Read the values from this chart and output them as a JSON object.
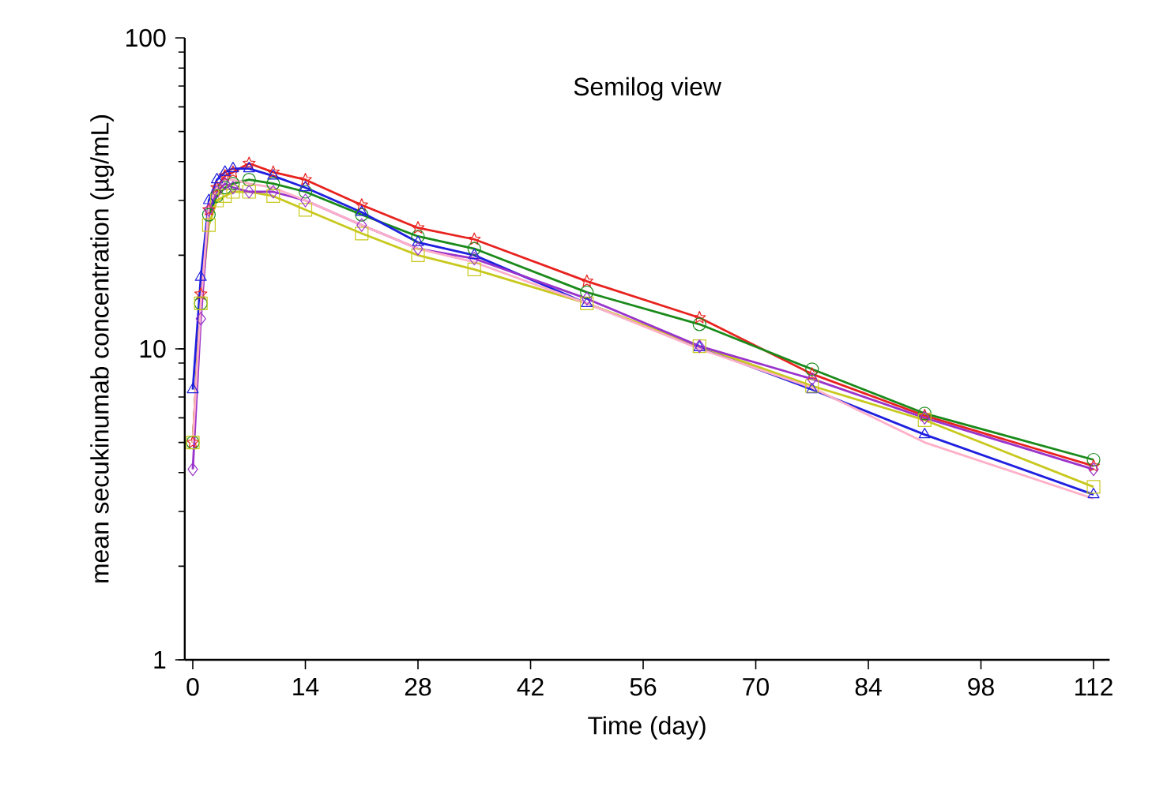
{
  "chart_data": {
    "type": "line",
    "title": "Semilog view",
    "xlabel": "Time (day)",
    "ylabel": "mean secukinumab concentration (µg/mL)",
    "x": [
      0,
      1,
      2,
      3,
      4,
      5,
      7,
      10,
      14,
      21,
      28,
      35,
      49,
      63,
      77,
      91,
      112
    ],
    "series": [
      {
        "color": "#e8231f",
        "marker": "star",
        "values": [
          5.0,
          15,
          28,
          33,
          36,
          37,
          39.5,
          37,
          35,
          29,
          24.5,
          22.5,
          16.5,
          12.6,
          8.3,
          6.1,
          4.2
        ]
      },
      {
        "color": "#1a8a1a",
        "marker": "circle",
        "values": [
          5.0,
          14,
          27,
          31,
          33,
          34,
          35,
          34,
          32,
          27,
          23,
          21,
          15.2,
          12,
          8.6,
          6.2,
          4.4
        ]
      },
      {
        "color": "#1f1fe0",
        "marker": "triangle",
        "values": [
          7.4,
          17,
          30,
          35,
          37,
          38,
          38,
          36,
          33,
          27.5,
          22,
          20,
          14,
          10.1,
          7.4,
          5.3,
          3.4
        ]
      },
      {
        "color": "#c8c81e",
        "marker": "square",
        "values": [
          5.0,
          14,
          25,
          30,
          31,
          32,
          32,
          31,
          28,
          23.5,
          20,
          18,
          14,
          10.2,
          7.6,
          5.9,
          3.6
        ]
      },
      {
        "color": "#9933cc",
        "marker": "diamond",
        "values": [
          4.1,
          12.5,
          28,
          32,
          34,
          33,
          32,
          32,
          30,
          25,
          21,
          19.5,
          14.5,
          10.2,
          8,
          6.0,
          4.1
        ]
      },
      {
        "color": "#ffb0c8",
        "marker": "none",
        "values": [
          5.0,
          14,
          29,
          33,
          35,
          35,
          34,
          33,
          30,
          25,
          21,
          19,
          14,
          10,
          7.5,
          5.0,
          3.3
        ]
      }
    ],
    "xlim": [
      -1,
      114
    ],
    "ylim": [
      1,
      100
    ],
    "xticks": [
      0,
      14,
      28,
      42,
      56,
      70,
      84,
      98,
      112
    ],
    "yticks": [
      1,
      10,
      100
    ],
    "log": "y"
  }
}
